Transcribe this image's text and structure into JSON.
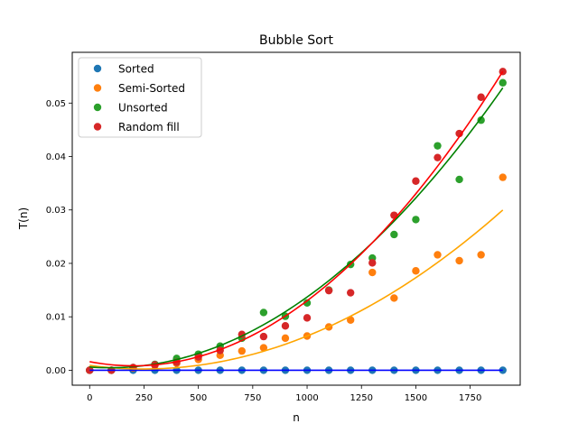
{
  "chart_data": {
    "type": "scatter",
    "title": "Bubble Sort",
    "xlabel": "n",
    "ylabel": "T(n)",
    "xlim": [
      -80,
      1980
    ],
    "ylim": [
      -0.0028,
      0.0595
    ],
    "xticks": [
      0,
      250,
      500,
      750,
      1000,
      1250,
      1500,
      1750
    ],
    "xtick_labels": [
      "0",
      "250",
      "500",
      "750",
      "1000",
      "1250",
      "1500",
      "1750"
    ],
    "yticks": [
      0.0,
      0.01,
      0.02,
      0.03,
      0.04,
      0.05
    ],
    "ytick_labels": [
      "0.00",
      "0.01",
      "0.02",
      "0.03",
      "0.04",
      "0.05"
    ],
    "legend_position": "top-left",
    "x": [
      0,
      100,
      200,
      300,
      400,
      500,
      600,
      700,
      800,
      900,
      1000,
      1100,
      1200,
      1300,
      1400,
      1500,
      1600,
      1700,
      1800,
      1900
    ],
    "series": [
      {
        "name": "Sorted",
        "color": "#1f77b4",
        "fit_color": "#0000ff",
        "values": [
          0,
          0,
          0,
          0,
          0,
          0,
          0,
          0,
          0,
          0,
          0,
          0,
          0,
          0,
          0,
          0,
          0,
          0,
          0,
          0
        ],
        "fit_coefficients": [
          0,
          0,
          0
        ]
      },
      {
        "name": "Semi-Sorted",
        "color": "#ff7f0e",
        "fit_color": "#ffa500",
        "values": [
          0.0,
          0.0,
          0.0004,
          0.0009,
          0.0013,
          0.002,
          0.0028,
          0.0036,
          0.0042,
          0.006,
          0.0064,
          0.0081,
          0.0094,
          0.0183,
          0.0135,
          0.0186,
          0.0216,
          0.0205,
          0.0216,
          0.0361
        ],
        "fit_coefficients": [
          1.09e-08,
          -5.4e-06,
          0.0009
        ]
      },
      {
        "name": "Unsorted",
        "color": "#2ca02c",
        "fit_color": "#008000",
        "values": [
          0.0,
          0.0,
          0.0005,
          0.0011,
          0.0022,
          0.003,
          0.0045,
          0.006,
          0.0108,
          0.0101,
          0.0126,
          0.015,
          0.0198,
          0.021,
          0.0254,
          0.0282,
          0.042,
          0.0357,
          0.0468,
          0.0538
        ],
        "fit_coefficients": [
          1.6e-08,
          -2.9e-06,
          0.0006
        ]
      },
      {
        "name": "Random fill",
        "color": "#d62728",
        "fit_color": "#ff0000",
        "values": [
          0.0,
          0.0,
          0.0005,
          0.001,
          0.0015,
          0.0025,
          0.0037,
          0.0067,
          0.0063,
          0.0083,
          0.0098,
          0.0149,
          0.0145,
          0.0201,
          0.029,
          0.0354,
          0.0398,
          0.0443,
          0.0511,
          0.0559
        ],
        "fit_coefficients": [
          1.91e-08,
          -7.7e-06,
          0.0016
        ]
      }
    ]
  }
}
